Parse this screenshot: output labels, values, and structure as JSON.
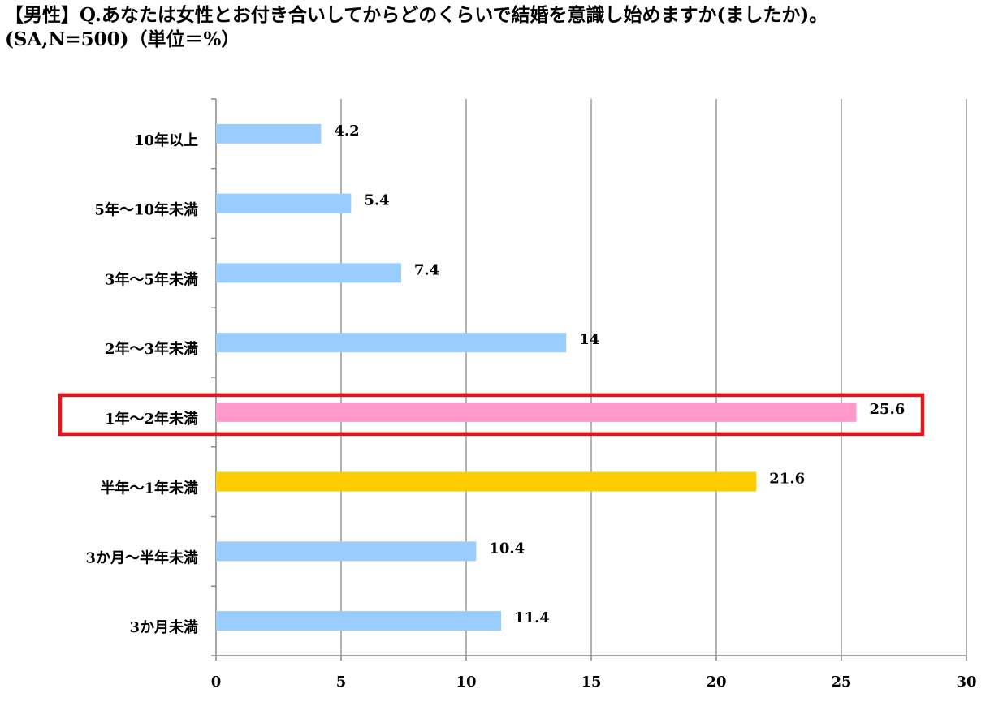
{
  "title_lines": [
    "【男性】Q.あなたは女性とお付き合いしてからどのくらいで結婚を意識し始めますか(ましたか)。",
    "(SA,N=500)（単位＝%）"
  ],
  "colors": {
    "bar_default": "#99CCFF",
    "bar_highlight": "#FF99CC",
    "bar_second": "#FFCC00",
    "highlight_box": "#E8141C",
    "gridline": "#999999"
  },
  "chart_data": {
    "type": "bar",
    "orientation": "horizontal",
    "title": "【男性】Q.あなたは女性とお付き合いしてからどのくらいで結婚を意識し始めますか(ましたか)。 (SA,N=500)（単位＝%）",
    "categories": [
      "10年以上",
      "5年～10年未満",
      "3年～5年未満",
      "2年～3年未満",
      "1年～2年未満",
      "半年～1年未満",
      "3か月～半年未満",
      "3か月未満"
    ],
    "values": [
      4.2,
      5.4,
      7.4,
      14,
      25.6,
      21.6,
      10.4,
      11.4
    ],
    "data_labels": [
      "4.2",
      "5.4",
      "7.4",
      "14",
      "25.6",
      "21.6",
      "10.4",
      "11.4"
    ],
    "bar_color_keys": [
      "bar_default",
      "bar_default",
      "bar_default",
      "bar_default",
      "bar_highlight",
      "bar_second",
      "bar_default",
      "bar_default"
    ],
    "highlighted_category": "1年～2年未満",
    "xlim": [
      0,
      30
    ],
    "xticks": [
      0,
      5,
      10,
      15,
      20,
      25,
      30
    ],
    "xlabel": "",
    "ylabel": "",
    "grid": "vertical",
    "legend": "none"
  }
}
